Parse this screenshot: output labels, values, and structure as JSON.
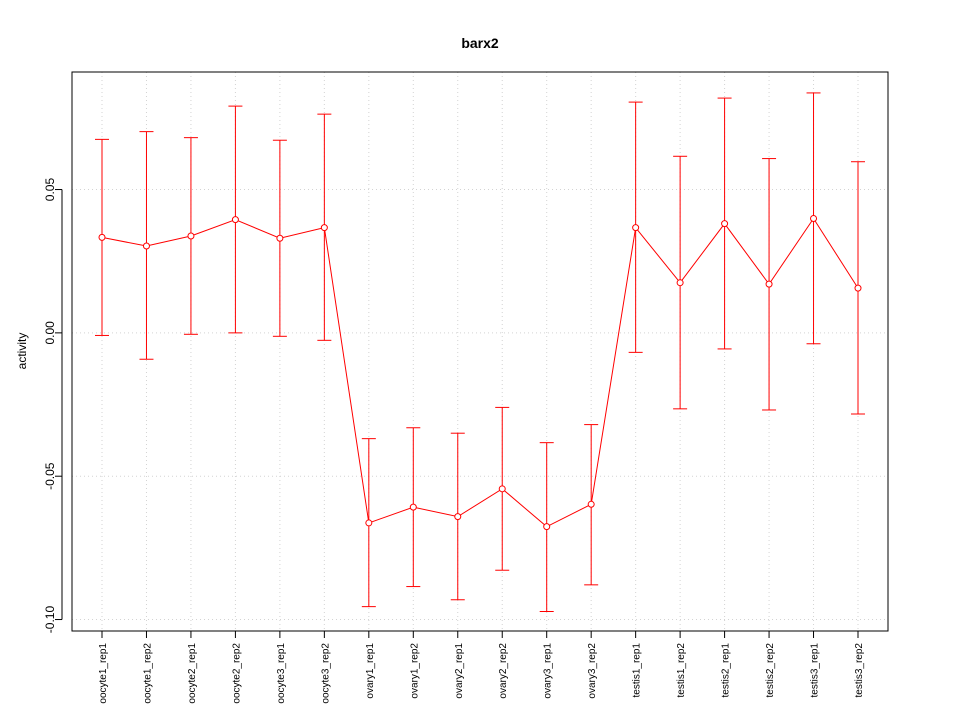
{
  "chart_data": {
    "type": "line",
    "title": "barx2",
    "xlabel": "",
    "ylabel": "activity",
    "ylim": [
      -0.104,
      0.091
    ],
    "yticks": [
      -0.1,
      -0.05,
      0.0,
      0.05
    ],
    "ytick_labels": [
      "-0.10",
      "-0.05",
      "0.00",
      "0.05"
    ],
    "grid": true,
    "categories": [
      "oocyte1_rep1",
      "oocyte1_rep2",
      "oocyte2_rep1",
      "oocyte2_rep2",
      "oocyte3_rep1",
      "oocyte3_rep2",
      "ovary1_rep1",
      "ovary1_rep2",
      "ovary2_rep1",
      "ovary2_rep2",
      "ovary3_rep1",
      "ovary3_rep2",
      "testis1_rep1",
      "testis1_rep2",
      "testis2_rep1",
      "testis2_rep2",
      "testis3_rep1",
      "testis3_rep2"
    ],
    "series": [
      {
        "color": "#ff0000",
        "values": [
          0.0333,
          0.0303,
          0.0338,
          0.0395,
          0.033,
          0.0367,
          -0.0663,
          -0.0608,
          -0.0641,
          -0.0544,
          -0.0676,
          -0.0598,
          0.0367,
          0.0175,
          0.0381,
          0.017,
          0.0399,
          0.0156
        ],
        "err_low": [
          -0.0009,
          -0.0092,
          -0.0005,
          0.0,
          -0.0012,
          -0.0026,
          -0.0955,
          -0.0885,
          -0.0931,
          -0.0828,
          -0.0972,
          -0.0879,
          -0.0068,
          -0.0265,
          -0.0056,
          -0.0269,
          -0.0038,
          -0.0283
        ],
        "err_high": [
          0.0675,
          0.0702,
          0.0681,
          0.0791,
          0.0672,
          0.0763,
          -0.0369,
          -0.0331,
          -0.035,
          -0.026,
          -0.0383,
          -0.032,
          0.0805,
          0.0616,
          0.0819,
          0.0608,
          0.0837,
          0.0597
        ]
      }
    ]
  }
}
